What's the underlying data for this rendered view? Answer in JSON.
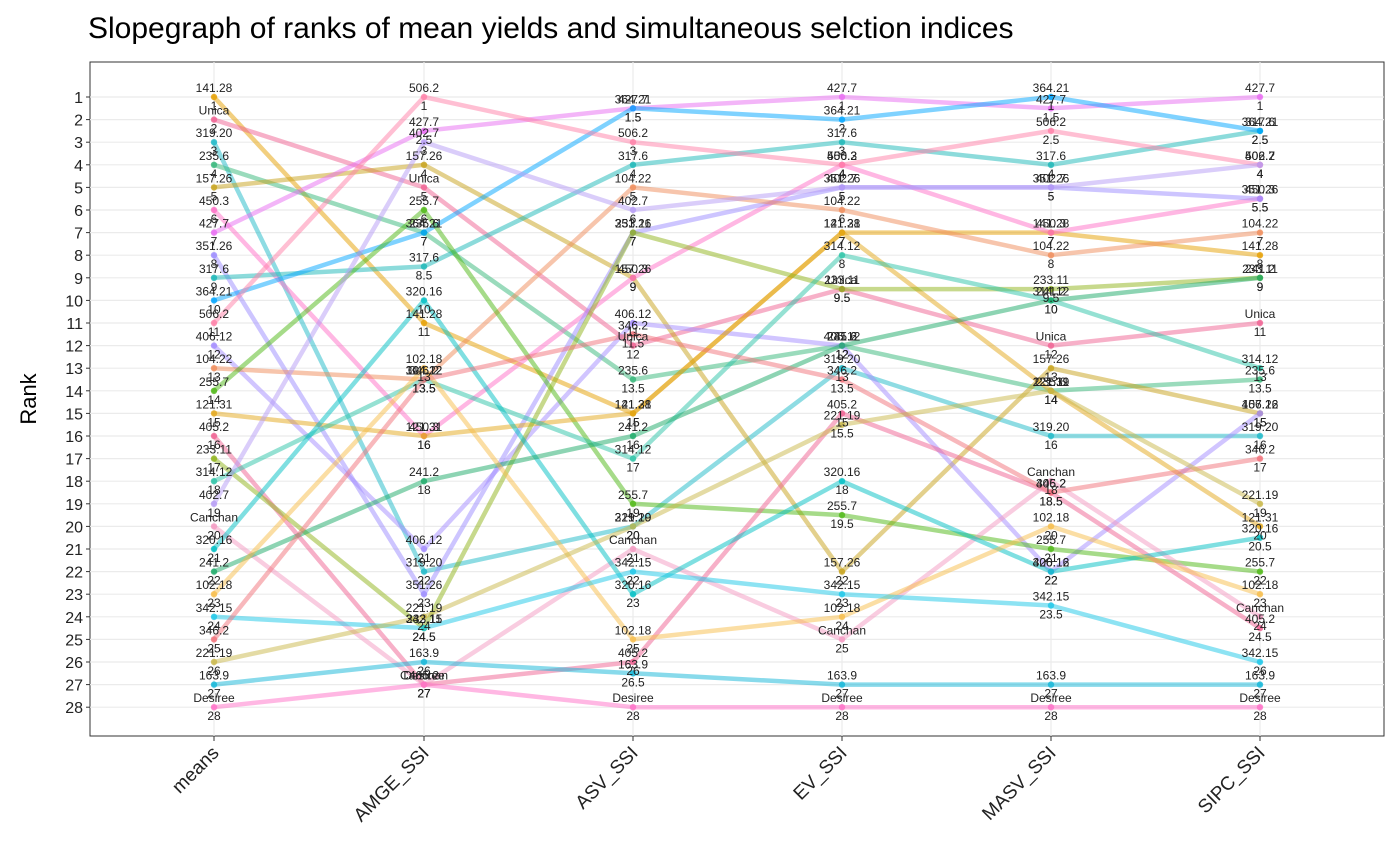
{
  "chart_data": {
    "type": "line",
    "title": "Slopegraph of ranks of mean yields and simultaneous selction indices",
    "xlabel": "",
    "ylabel": "Rank",
    "ylim": [
      28,
      1
    ],
    "grid": true,
    "legend": "none",
    "categories": [
      "means",
      "AMGE_SSI",
      "ASV_SSI",
      "EV_SSI",
      "MASV_SSI",
      "SIPC_SSI"
    ],
    "y_ticks": [
      "1",
      "2",
      "3",
      "4",
      "5",
      "6",
      "7",
      "8",
      "9",
      "10",
      "11",
      "12",
      "13",
      "14",
      "15",
      "16",
      "17",
      "18",
      "19",
      "20",
      "21",
      "22",
      "23",
      "24",
      "25",
      "26",
      "27",
      "28"
    ],
    "series": [
      {
        "name": "141.28",
        "color": "#E69F00",
        "values": [
          1,
          11,
          15,
          7,
          7,
          8
        ]
      },
      {
        "name": "Unica",
        "color": "#F06292",
        "values": [
          2,
          5,
          12,
          9.5,
          12,
          11
        ]
      },
      {
        "name": "319.20",
        "color": "#1DB9C8",
        "values": [
          3,
          22,
          20,
          13,
          16,
          16
        ]
      },
      {
        "name": "235.6",
        "color": "#35B779",
        "values": [
          4,
          7,
          13.5,
          12,
          14,
          13.5
        ]
      },
      {
        "name": "157.26",
        "color": "#C7A21A",
        "values": [
          5,
          4,
          9,
          22,
          13,
          15
        ]
      },
      {
        "name": "450.3",
        "color": "#FF6FC7",
        "values": [
          6,
          16,
          9,
          4,
          7,
          5.5
        ]
      },
      {
        "name": "427.7",
        "color": "#E86CF2",
        "values": [
          7,
          2.5,
          1.5,
          1,
          1.5,
          1
        ]
      },
      {
        "name": "351.26",
        "color": "#9C8CFF",
        "values": [
          8,
          23,
          7,
          5,
          5,
          5.5
        ]
      },
      {
        "name": "317.6",
        "color": "#19B7B7",
        "values": [
          9,
          8.5,
          4,
          3,
          4,
          2.5
        ]
      },
      {
        "name": "364.21",
        "color": "#00A5FF",
        "values": [
          10,
          7,
          1.5,
          2,
          1,
          2.5
        ]
      },
      {
        "name": "506.2",
        "color": "#FF7FA8",
        "values": [
          11,
          1,
          3,
          4,
          2.5,
          4
        ]
      },
      {
        "name": "406.12",
        "color": "#A48CFF",
        "values": [
          12,
          21,
          11,
          12,
          22,
          15
        ]
      },
      {
        "name": "104.22",
        "color": "#F08C5A",
        "values": [
          13,
          13.5,
          5,
          6,
          8,
          7
        ]
      },
      {
        "name": "255.7",
        "color": "#4DB814",
        "values": [
          14,
          6,
          19,
          19.5,
          21,
          22
        ]
      },
      {
        "name": "121.31",
        "color": "#E3A81A",
        "values": [
          15,
          16,
          15,
          7,
          14,
          20
        ]
      },
      {
        "name": "405.2",
        "color": "#F06292",
        "values": [
          16,
          27,
          26,
          15,
          18.5,
          24.5
        ]
      },
      {
        "name": "233.11",
        "color": "#8FB31A",
        "values": [
          17,
          24.5,
          7,
          9.5,
          9.5,
          9
        ]
      },
      {
        "name": "314.12",
        "color": "#2CC4A8",
        "values": [
          18,
          13.5,
          17,
          8,
          10,
          13
        ]
      },
      {
        "name": "402.7",
        "color": "#B69CF5",
        "values": [
          19,
          3,
          6,
          5,
          5,
          4
        ]
      },
      {
        "name": "Canchan",
        "color": "#F49AC2",
        "values": [
          20,
          27,
          21,
          25,
          18,
          24
        ]
      },
      {
        "name": "320.16",
        "color": "#00BFC4",
        "values": [
          21,
          10,
          23,
          18,
          22,
          20.5
        ]
      },
      {
        "name": "241.2",
        "color": "#1BAA68",
        "values": [
          22,
          18,
          16,
          12,
          10,
          9
        ]
      },
      {
        "name": "102.18",
        "color": "#F7BD4A",
        "values": [
          23,
          13,
          25,
          24,
          20,
          23
        ]
      },
      {
        "name": "342.15",
        "color": "#1CC7E8",
        "values": [
          24,
          24.5,
          22,
          23,
          23.5,
          26
        ]
      },
      {
        "name": "346.2",
        "color": "#F2727A",
        "values": [
          25,
          13.5,
          11.5,
          13.5,
          18.5,
          17
        ]
      },
      {
        "name": "221.19",
        "color": "#C9B84A",
        "values": [
          26,
          24,
          20,
          15.5,
          14,
          19
        ]
      },
      {
        "name": "163.9",
        "color": "#12B6D8",
        "values": [
          27,
          26,
          26.5,
          27,
          27,
          27
        ]
      },
      {
        "name": "Desiree",
        "color": "#FF6FC7",
        "values": [
          28,
          27,
          28,
          28,
          28,
          28
        ]
      }
    ]
  }
}
